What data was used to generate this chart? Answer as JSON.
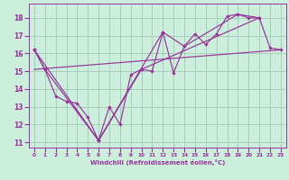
{
  "xlabel": "Windchill (Refroidissement éolien,°C)",
  "bg_color": "#cceedd",
  "grid_color": "#aaccbb",
  "line_color": "#993399",
  "xlim": [
    -0.5,
    23.5
  ],
  "ylim": [
    10.7,
    18.8
  ],
  "yticks": [
    11,
    12,
    13,
    14,
    15,
    16,
    17,
    18
  ],
  "xticks": [
    0,
    1,
    2,
    3,
    4,
    5,
    6,
    7,
    8,
    9,
    10,
    11,
    12,
    13,
    14,
    15,
    16,
    17,
    18,
    19,
    20,
    21,
    22,
    23
  ],
  "series_zigzag_x": [
    0,
    1,
    2,
    3,
    4,
    5,
    6,
    7,
    8,
    9,
    10,
    11,
    12,
    13,
    14,
    15,
    16,
    17,
    18,
    19,
    20,
    21,
    22,
    23
  ],
  "series_zigzag_y": [
    16.2,
    15.1,
    13.6,
    13.3,
    13.2,
    12.4,
    11.1,
    13.0,
    12.0,
    14.8,
    15.1,
    15.0,
    17.2,
    14.9,
    16.4,
    17.1,
    16.5,
    17.1,
    18.1,
    18.2,
    18.0,
    18.0,
    16.3,
    16.2
  ],
  "series_poly_x": [
    0,
    1,
    6,
    10,
    21,
    19,
    14,
    12,
    6,
    0
  ],
  "series_poly_y": [
    16.2,
    15.1,
    11.1,
    15.1,
    18.0,
    18.2,
    16.4,
    17.2,
    11.1,
    16.2
  ],
  "series_trend_x": [
    0,
    23
  ],
  "series_trend_y": [
    15.1,
    16.2
  ]
}
